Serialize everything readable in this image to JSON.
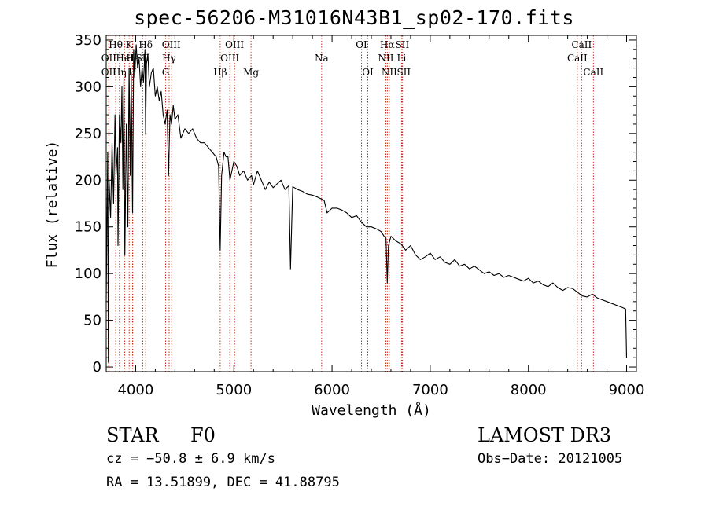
{
  "title": "spec-56206-M31016N43B1_sp02-170.fits",
  "chart_data": {
    "type": "line",
    "title": "spec-56206-M31016N43B1_sp02-170.fits",
    "xlabel": "Wavelength (Å)",
    "ylabel": "Flux (relative)",
    "xlim": [
      3700,
      9100
    ],
    "ylim": [
      -5,
      355
    ],
    "xticks": [
      4000,
      5000,
      6000,
      7000,
      8000,
      9000
    ],
    "yticks": [
      0,
      50,
      100,
      150,
      200,
      250,
      300,
      350
    ],
    "series": [
      {
        "name": "flux",
        "color": "#000000",
        "x": [
          3700,
          3715,
          3722,
          3730,
          3745,
          3760,
          3775,
          3790,
          3800,
          3815,
          3820,
          3835,
          3850,
          3860,
          3870,
          3880,
          3890,
          3905,
          3920,
          3933,
          3945,
          3955,
          3968,
          3980,
          3990,
          4005,
          4020,
          4035,
          4050,
          4065,
          4080,
          4095,
          4101,
          4110,
          4125,
          4140,
          4160,
          4180,
          4200,
          4220,
          4240,
          4260,
          4280,
          4300,
          4320,
          4335,
          4340,
          4350,
          4365,
          4383,
          4400,
          4430,
          4460,
          4500,
          4540,
          4580,
          4620,
          4660,
          4700,
          4740,
          4780,
          4820,
          4845,
          4861,
          4875,
          4900,
          4920,
          4940,
          4960,
          4980,
          5000,
          5030,
          5060,
          5100,
          5140,
          5180,
          5200,
          5240,
          5280,
          5320,
          5360,
          5400,
          5440,
          5480,
          5520,
          5560,
          5577,
          5600,
          5650,
          5700,
          5750,
          5800,
          5850,
          5890,
          5920,
          5950,
          6000,
          6050,
          6100,
          6150,
          6200,
          6250,
          6300,
          6350,
          6400,
          6450,
          6500,
          6530,
          6550,
          6563,
          6575,
          6600,
          6650,
          6700,
          6750,
          6800,
          6850,
          6900,
          6950,
          7000,
          7050,
          7100,
          7150,
          7200,
          7250,
          7300,
          7350,
          7400,
          7450,
          7500,
          7550,
          7600,
          7650,
          7700,
          7750,
          7800,
          7850,
          7900,
          7950,
          8000,
          8050,
          8100,
          8150,
          8200,
          8250,
          8300,
          8350,
          8400,
          8450,
          8500,
          8550,
          8600,
          8650,
          8700,
          8750,
          8800,
          8850,
          8900,
          8950,
          8990,
          9000
        ],
        "y": [
          70,
          230,
          5,
          200,
          160,
          240,
          175,
          270,
          205,
          235,
          130,
          270,
          240,
          300,
          190,
          310,
          120,
          260,
          150,
          320,
          205,
          315,
          165,
          340,
          310,
          345,
          320,
          330,
          300,
          320,
          305,
          340,
          250,
          325,
          335,
          300,
          315,
          320,
          290,
          300,
          285,
          295,
          270,
          260,
          275,
          205,
          230,
          270,
          260,
          280,
          265,
          270,
          245,
          255,
          250,
          255,
          245,
          240,
          240,
          235,
          230,
          225,
          215,
          125,
          205,
          230,
          225,
          225,
          200,
          210,
          220,
          215,
          205,
          210,
          200,
          205,
          195,
          210,
          200,
          190,
          198,
          192,
          196,
          200,
          190,
          194,
          105,
          193,
          190,
          188,
          185,
          184,
          182,
          180,
          178,
          165,
          170,
          170,
          168,
          165,
          160,
          162,
          155,
          150,
          150,
          148,
          145,
          140,
          138,
          90,
          130,
          140,
          135,
          132,
          125,
          130,
          120,
          115,
          118,
          122,
          115,
          118,
          112,
          110,
          115,
          108,
          110,
          105,
          108,
          104,
          100,
          102,
          98,
          100,
          96,
          98,
          96,
          94,
          92,
          95,
          90,
          92,
          88,
          86,
          90,
          85,
          82,
          85,
          84,
          80,
          76,
          75,
          78,
          74,
          72,
          70,
          68,
          66,
          64,
          62,
          10
        ]
      }
    ],
    "lines": [
      {
        "name": "OII",
        "wave": 3727,
        "row": 2
      },
      {
        "name": "Hθ",
        "wave": 3797,
        "row": 0
      },
      {
        "name": "OII",
        "wave": 3727,
        "row": 1
      },
      {
        "name": "Hη",
        "wave": 3835,
        "row": 2
      },
      {
        "name": "HeI",
        "wave": 3889,
        "row": 1
      },
      {
        "name": "K",
        "wave": 3934,
        "row": 0
      },
      {
        "name": "H",
        "wave": 3968,
        "row": 2
      },
      {
        "name": "Hε",
        "wave": 3970,
        "row": 1
      },
      {
        "name": "Hδ",
        "wave": 4102,
        "row": 0
      },
      {
        "name": "SII",
        "wave": 4072,
        "row": 1
      },
      {
        "name": "G",
        "wave": 4305,
        "row": 2
      },
      {
        "name": "Hγ",
        "wave": 4341,
        "row": 1
      },
      {
        "name": "OIII",
        "wave": 4363,
        "row": 0
      },
      {
        "name": "Hβ",
        "wave": 4861,
        "row": 2
      },
      {
        "name": "OIII",
        "wave": 4959,
        "row": 1
      },
      {
        "name": "OIII",
        "wave": 5007,
        "row": 0
      },
      {
        "name": "Mg",
        "wave": 5175,
        "row": 2
      },
      {
        "name": "Na",
        "wave": 5894,
        "row": 1
      },
      {
        "name": "OI",
        "wave": 6300,
        "row": 0
      },
      {
        "name": "OI",
        "wave": 6364,
        "row": 2
      },
      {
        "name": "NII",
        "wave": 6548,
        "row": 1
      },
      {
        "name": "Hα",
        "wave": 6563,
        "row": 0
      },
      {
        "name": "NII",
        "wave": 6583,
        "row": 2
      },
      {
        "name": "SII",
        "wave": 6716,
        "row": 0
      },
      {
        "name": "Li",
        "wave": 6708,
        "row": 1
      },
      {
        "name": "SII",
        "wave": 6731,
        "row": 2
      },
      {
        "name": "CaII",
        "wave": 8498,
        "row": 1
      },
      {
        "name": "CaII",
        "wave": 8542,
        "row": 0
      },
      {
        "name": "CaII",
        "wave": 8662,
        "row": 2
      }
    ]
  },
  "info": {
    "class": "STAR",
    "subclass": "F0",
    "survey": "LAMOST DR3",
    "cz": "cz = −50.8 ± 6.9 km/s",
    "obsdate": "Obs−Date: 20121005",
    "radec": "RA =  13.51899, DEC =  41.88795"
  }
}
